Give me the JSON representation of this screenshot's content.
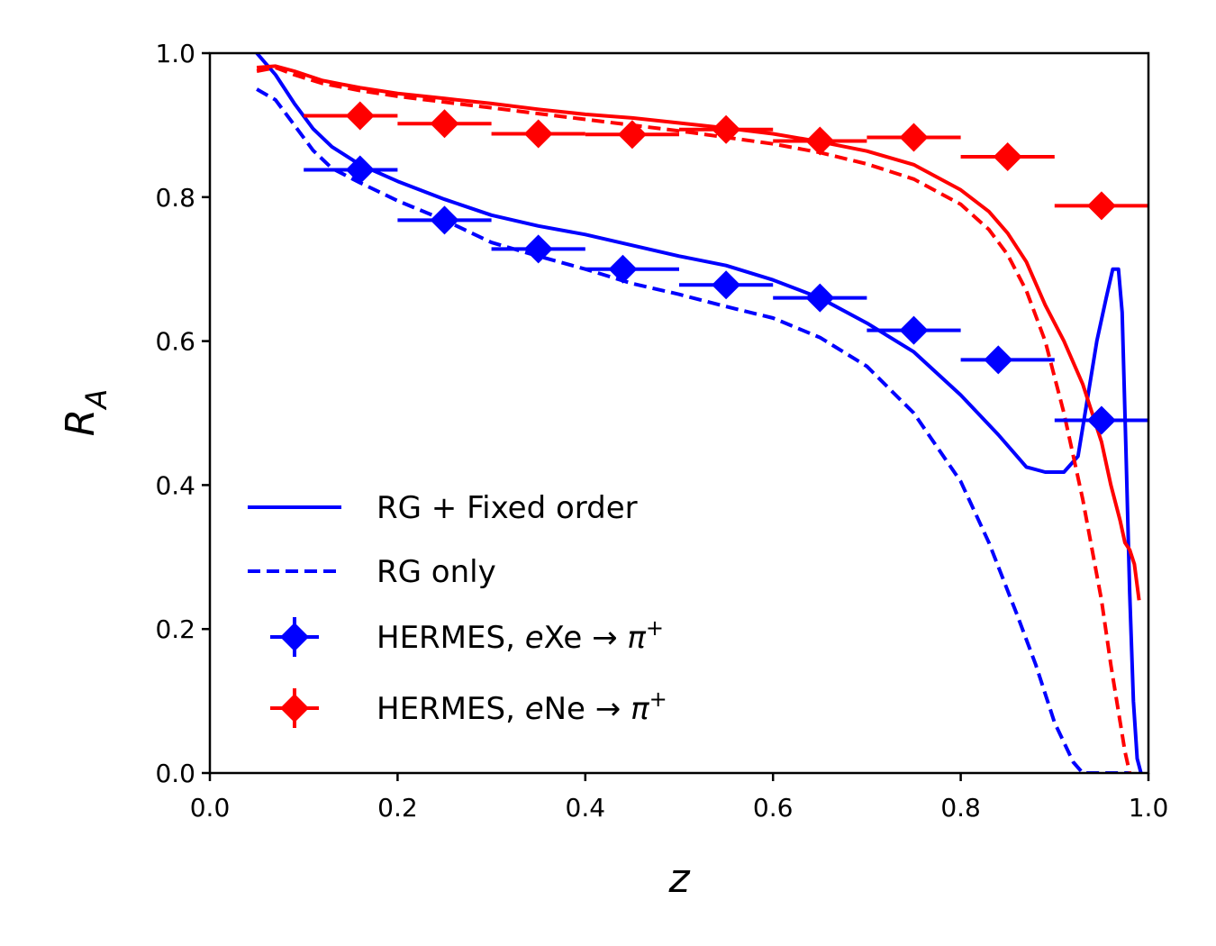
{
  "chart_data": {
    "type": "line",
    "xlabel": "z",
    "ylabel": "R",
    "ylabel_subscript": "A",
    "xlim": [
      0.0,
      1.0
    ],
    "ylim": [
      0.0,
      1.0
    ],
    "xticks": [
      "0.0",
      "0.2",
      "0.4",
      "0.6",
      "0.8",
      "1.0"
    ],
    "yticks": [
      "0.0",
      "0.2",
      "0.4",
      "0.6",
      "0.8",
      "1.0"
    ],
    "grid": false,
    "legend_position": "lower-left",
    "legend": [
      {
        "label": "RG + Fixed order",
        "style": "solid",
        "color": "#0000ff"
      },
      {
        "label": "RG only",
        "style": "dashed",
        "color": "#0000ff"
      },
      {
        "label_main": "HERMES, ",
        "label_e": "e",
        "label_target": "Xe",
        "label_arrow": " → ",
        "label_pi": "π",
        "label_sup": "+",
        "style": "marker",
        "color": "#0000ff"
      },
      {
        "label_main": "HERMES, ",
        "label_e": "e",
        "label_target": "Ne",
        "label_arrow": " → ",
        "label_pi": "π",
        "label_sup": "+",
        "style": "marker",
        "color": "#ff0000"
      }
    ],
    "series": [
      {
        "name": "RG + Fixed order",
        "target": "Xe",
        "color": "#0000ff",
        "style": "solid",
        "x": [
          0.05,
          0.07,
          0.09,
          0.11,
          0.13,
          0.16,
          0.2,
          0.25,
          0.3,
          0.35,
          0.4,
          0.45,
          0.5,
          0.55,
          0.6,
          0.65,
          0.7,
          0.75,
          0.8,
          0.84,
          0.87,
          0.89,
          0.91,
          0.925,
          0.935,
          0.945,
          0.955,
          0.962,
          0.968,
          0.972,
          0.976,
          0.98,
          0.984,
          0.988,
          0.992
        ],
        "y": [
          1.0,
          0.97,
          0.93,
          0.895,
          0.87,
          0.845,
          0.822,
          0.797,
          0.775,
          0.76,
          0.748,
          0.733,
          0.718,
          0.705,
          0.685,
          0.66,
          0.625,
          0.585,
          0.525,
          0.47,
          0.425,
          0.418,
          0.418,
          0.44,
          0.52,
          0.6,
          0.66,
          0.7,
          0.7,
          0.64,
          0.45,
          0.25,
          0.1,
          0.02,
          0.0
        ]
      },
      {
        "name": "RG only",
        "target": "Xe",
        "color": "#0000ff",
        "style": "dashed",
        "x": [
          0.05,
          0.07,
          0.09,
          0.11,
          0.13,
          0.16,
          0.2,
          0.25,
          0.3,
          0.35,
          0.4,
          0.45,
          0.5,
          0.55,
          0.6,
          0.65,
          0.7,
          0.75,
          0.8,
          0.83,
          0.86,
          0.88,
          0.9,
          0.92,
          0.93,
          0.94,
          0.96,
          0.98
        ],
        "y": [
          0.95,
          0.935,
          0.9,
          0.865,
          0.84,
          0.82,
          0.795,
          0.768,
          0.737,
          0.718,
          0.7,
          0.68,
          0.665,
          0.648,
          0.632,
          0.605,
          0.565,
          0.5,
          0.405,
          0.32,
          0.22,
          0.15,
          0.07,
          0.015,
          0.0,
          0.0,
          0.0,
          0.0
        ]
      },
      {
        "name": "RG + Fixed order",
        "target": "Ne",
        "color": "#ff0000",
        "style": "solid",
        "x": [
          0.05,
          0.07,
          0.09,
          0.12,
          0.16,
          0.2,
          0.25,
          0.3,
          0.35,
          0.4,
          0.45,
          0.5,
          0.55,
          0.6,
          0.65,
          0.7,
          0.75,
          0.8,
          0.83,
          0.85,
          0.87,
          0.89,
          0.91,
          0.93,
          0.95,
          0.96,
          0.97,
          0.975,
          0.98,
          0.985,
          0.99
        ],
        "y": [
          0.98,
          0.982,
          0.975,
          0.962,
          0.952,
          0.944,
          0.937,
          0.93,
          0.922,
          0.915,
          0.91,
          0.903,
          0.896,
          0.888,
          0.877,
          0.864,
          0.845,
          0.81,
          0.78,
          0.75,
          0.71,
          0.65,
          0.6,
          0.54,
          0.46,
          0.4,
          0.35,
          0.32,
          0.31,
          0.29,
          0.24
        ]
      },
      {
        "name": "RG only",
        "target": "Ne",
        "color": "#ff0000",
        "style": "dashed",
        "x": [
          0.05,
          0.07,
          0.09,
          0.12,
          0.16,
          0.2,
          0.25,
          0.3,
          0.35,
          0.4,
          0.45,
          0.5,
          0.55,
          0.6,
          0.65,
          0.7,
          0.75,
          0.8,
          0.83,
          0.85,
          0.87,
          0.89,
          0.91,
          0.93,
          0.95,
          0.96,
          0.97,
          0.975,
          0.98
        ],
        "y": [
          0.975,
          0.98,
          0.97,
          0.958,
          0.948,
          0.94,
          0.932,
          0.924,
          0.916,
          0.908,
          0.9,
          0.892,
          0.883,
          0.874,
          0.862,
          0.846,
          0.825,
          0.79,
          0.755,
          0.72,
          0.67,
          0.6,
          0.5,
          0.38,
          0.24,
          0.15,
          0.07,
          0.03,
          0.0
        ]
      }
    ],
    "data_points": [
      {
        "name": "HERMES, eXe → π+",
        "color": "#0000ff",
        "points": [
          {
            "x": 0.16,
            "y": 0.838,
            "xerr": [
              0.1,
              0.2
            ]
          },
          {
            "x": 0.25,
            "y": 0.768,
            "xerr": [
              0.2,
              0.3
            ]
          },
          {
            "x": 0.35,
            "y": 0.728,
            "xerr": [
              0.3,
              0.4
            ]
          },
          {
            "x": 0.44,
            "y": 0.7,
            "xerr": [
              0.4,
              0.5
            ]
          },
          {
            "x": 0.55,
            "y": 0.678,
            "xerr": [
              0.5,
              0.6
            ]
          },
          {
            "x": 0.65,
            "y": 0.66,
            "xerr": [
              0.6,
              0.7
            ]
          },
          {
            "x": 0.75,
            "y": 0.615,
            "xerr": [
              0.7,
              0.8
            ]
          },
          {
            "x": 0.84,
            "y": 0.574,
            "xerr": [
              0.8,
              0.9
            ]
          },
          {
            "x": 0.95,
            "y": 0.49,
            "xerr": [
              0.9,
              1.0
            ]
          }
        ]
      },
      {
        "name": "HERMES, eNe → π+",
        "color": "#ff0000",
        "points": [
          {
            "x": 0.16,
            "y": 0.913,
            "xerr": [
              0.1,
              0.2
            ]
          },
          {
            "x": 0.25,
            "y": 0.902,
            "xerr": [
              0.2,
              0.3
            ]
          },
          {
            "x": 0.35,
            "y": 0.888,
            "xerr": [
              0.3,
              0.4
            ]
          },
          {
            "x": 0.45,
            "y": 0.887,
            "xerr": [
              0.4,
              0.5
            ]
          },
          {
            "x": 0.55,
            "y": 0.894,
            "xerr": [
              0.5,
              0.6
            ]
          },
          {
            "x": 0.65,
            "y": 0.878,
            "xerr": [
              0.6,
              0.7
            ]
          },
          {
            "x": 0.75,
            "y": 0.883,
            "xerr": [
              0.7,
              0.8
            ]
          },
          {
            "x": 0.85,
            "y": 0.856,
            "xerr": [
              0.8,
              0.9
            ]
          },
          {
            "x": 0.95,
            "y": 0.788,
            "xerr": [
              0.9,
              1.0
            ]
          }
        ]
      }
    ]
  }
}
